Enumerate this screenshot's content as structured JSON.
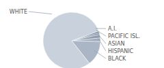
{
  "chart_data": {
    "type": "pie",
    "categories": [
      "A.I.",
      "PACIFIC ISL.",
      "ASIAN",
      "HISPANIC",
      "BLACK",
      "WHITE"
    ],
    "values": [
      1,
      1,
      2,
      2,
      14,
      80
    ],
    "colors": [
      "#6f8197",
      "#7f90a5",
      "#8e9db0",
      "#9eabbc",
      "#aab6c6",
      "#c9d1dc"
    ]
  }
}
